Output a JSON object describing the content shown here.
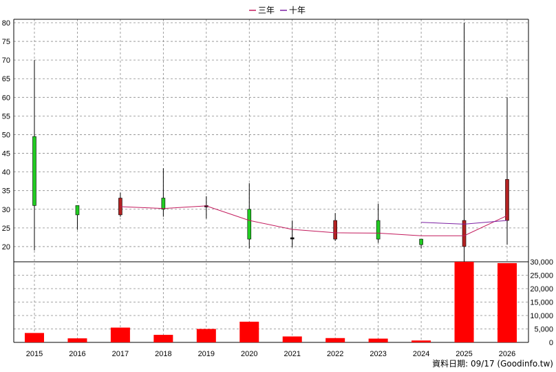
{
  "chart_data": {
    "type": "candlestick",
    "legend": [
      {
        "label": "三年",
        "color": "#c2185b"
      },
      {
        "label": "十年",
        "color": "#7b1fa2"
      }
    ],
    "years": [
      "2015",
      "2016",
      "2017",
      "2018",
      "2019",
      "2020",
      "2021",
      "2022",
      "2023",
      "2024",
      "2025",
      "2026"
    ],
    "price_axis": {
      "ylim": [
        15,
        80
      ],
      "ticks": [
        "20",
        "25",
        "30",
        "35",
        "40",
        "45",
        "50",
        "55",
        "60",
        "65",
        "70",
        "75",
        "80"
      ],
      "grid": true
    },
    "volume_axis": {
      "ylim": [
        0,
        30000
      ],
      "ticks": [
        "0",
        "5,000",
        "10,000",
        "15,000",
        "20,000",
        "25,000",
        "30,000"
      ],
      "grid": true
    },
    "candles": [
      {
        "year": "2015",
        "open": 49.5,
        "close": 31.0,
        "high": 70.0,
        "low": 19.0
      },
      {
        "year": "2016",
        "open": 31.0,
        "close": 28.5,
        "high": 31.0,
        "low": 24.5
      },
      {
        "year": "2017",
        "open": 28.5,
        "close": 33.0,
        "high": 34.5,
        "low": 28.0
      },
      {
        "year": "2018",
        "open": 33.0,
        "close": 30.0,
        "high": 41.0,
        "low": 28.0
      },
      {
        "year": "2019",
        "open": 30.8,
        "close": 30.8,
        "high": 33.5,
        "low": 27.5
      },
      {
        "year": "2020",
        "open": 30.0,
        "close": 22.0,
        "high": 37.0,
        "low": 19.5
      },
      {
        "year": "2021",
        "open": 22.2,
        "close": 22.2,
        "high": 27.0,
        "low": 19.8
      },
      {
        "year": "2022",
        "open": 22.0,
        "close": 27.0,
        "high": 29.0,
        "low": 21.5
      },
      {
        "year": "2023",
        "open": 27.0,
        "close": 22.0,
        "high": 31.5,
        "low": 21.0
      },
      {
        "year": "2024",
        "open": 22.0,
        "close": 20.5,
        "high": 22.0,
        "low": 19.5
      },
      {
        "year": "2025",
        "open": 20.0,
        "close": 27.0,
        "high": 80.0,
        "low": 16.0
      },
      {
        "year": "2026",
        "open": 27.0,
        "close": 38.0,
        "high": 60.0,
        "low": 20.5
      }
    ],
    "series": [
      {
        "name": "三年",
        "color": "#c2185b",
        "values": [
          null,
          null,
          30.7,
          30.2,
          30.9,
          27.0,
          24.6,
          23.7,
          23.6,
          22.9,
          22.9,
          28.3
        ]
      },
      {
        "name": "十年",
        "color": "#7b1fa2",
        "values": [
          null,
          null,
          null,
          null,
          null,
          null,
          null,
          null,
          null,
          26.5,
          26.0,
          27.0
        ]
      }
    ],
    "volume": [
      3500,
      1500,
      5500,
      2800,
      5000,
      7700,
      2200,
      1600,
      1400,
      700,
      30000,
      29500
    ],
    "footnote": "資料日期: 09/17 (Goodinfo.tw)"
  }
}
